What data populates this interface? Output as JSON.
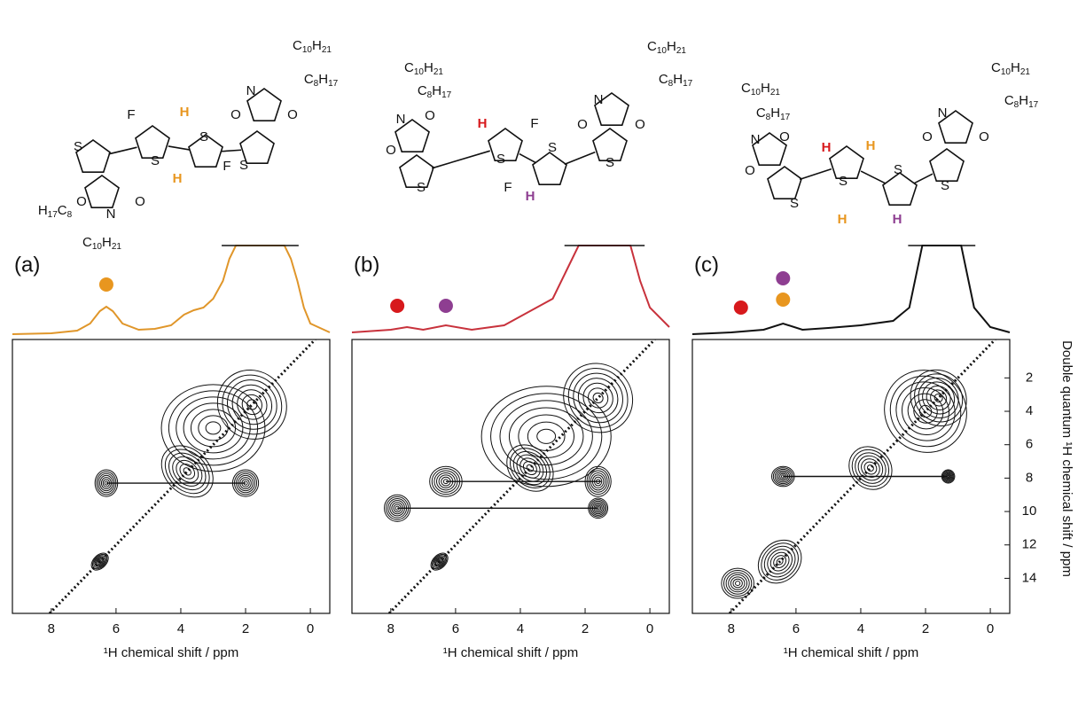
{
  "chart_data": [
    {
      "type": "contour",
      "label": "(a)",
      "color": "#e0962a",
      "diagonal": true,
      "xlim": [
        9.2,
        -0.6
      ],
      "ylim": [
        16.1,
        -0.3
      ],
      "xticks": [
        8,
        6,
        4,
        2,
        0
      ],
      "xlabel": "¹H chemical shift / ppm",
      "projection": {
        "x": [
          9.2,
          8,
          7.2,
          6.8,
          6.5,
          6.3,
          6.1,
          5.8,
          5.3,
          4.8,
          4.3,
          3.9,
          3.6,
          3.3,
          3.0,
          2.7,
          2.5,
          2.3,
          0.8,
          0.6,
          0.4,
          0.2,
          0,
          -0.6
        ],
        "values": [
          0,
          0.01,
          0.04,
          0.12,
          0.26,
          0.31,
          0.26,
          0.12,
          0.05,
          0.06,
          0.1,
          0.22,
          0.27,
          0.3,
          0.4,
          0.6,
          0.85,
          1,
          1,
          0.85,
          0.6,
          0.3,
          0.12,
          0.02
        ]
      },
      "markers": [
        {
          "x": 6.3,
          "color": "#e8961f"
        }
      ],
      "peaks": [
        {
          "x": 3.0,
          "y": 5.0,
          "rx": 1.6,
          "ry": 2.6
        },
        {
          "x": 1.8,
          "y": 3.6,
          "rx": 1.1,
          "ry": 2.0
        },
        {
          "x": 3.8,
          "y": 7.6,
          "rx": 0.9,
          "ry": 1.3
        },
        {
          "x": 6.3,
          "y": 8.3,
          "rx": 0.35,
          "ry": 0.8
        },
        {
          "x": 2.0,
          "y": 8.3,
          "rx": 0.4,
          "ry": 0.8
        },
        {
          "x": 6.5,
          "y": 13.0,
          "rx": 0.2,
          "ry": 0.6
        }
      ],
      "correlations": [
        {
          "x": [
            6.3,
            2.0
          ],
          "y": 8.3
        }
      ],
      "molecule": [
        {
          "text": "F",
          "color": "#111111"
        },
        {
          "text": "H",
          "color": "#e8961f"
        },
        {
          "text": "S",
          "color": "#111111"
        },
        {
          "text": "S",
          "color": "#111111"
        },
        {
          "text": "S",
          "color": "#111111"
        },
        {
          "text": "S",
          "color": "#111111"
        },
        {
          "text": "H",
          "color": "#e8961f"
        },
        {
          "text": "F",
          "color": "#111111"
        },
        {
          "text": "O",
          "color": "#111111"
        },
        {
          "text": "N",
          "color": "#111111"
        },
        {
          "text": "O",
          "color": "#111111"
        },
        {
          "text": "O",
          "color": "#111111"
        },
        {
          "text": "N",
          "color": "#111111"
        },
        {
          "text": "O",
          "color": "#111111"
        },
        {
          "text": "C10H21",
          "color": "#111111"
        },
        {
          "text": "C8H17",
          "color": "#111111"
        },
        {
          "text": "H17C8",
          "color": "#111111"
        },
        {
          "text": "C10H21",
          "color": "#111111"
        }
      ]
    },
    {
      "type": "contour",
      "label": "(b)",
      "color": "#c8323c",
      "diagonal": true,
      "xlim": [
        9.2,
        -0.6
      ],
      "ylim": [
        16.1,
        -0.3
      ],
      "xticks": [
        8,
        6,
        4,
        2,
        0
      ],
      "xlabel": "¹H chemical shift / ppm",
      "projection": {
        "x": [
          9.2,
          8,
          7.5,
          7,
          6.3,
          5.5,
          4.5,
          4,
          3.5,
          3,
          2.6,
          2.2,
          0.6,
          0.3,
          0,
          -0.6
        ],
        "values": [
          0.02,
          0.05,
          0.08,
          0.05,
          0.1,
          0.05,
          0.1,
          0.2,
          0.3,
          0.4,
          0.7,
          1,
          1,
          0.6,
          0.3,
          0.08
        ]
      },
      "markers": [
        {
          "x": 7.8,
          "color": "#d7191c"
        },
        {
          "x": 6.3,
          "color": "#8e3e91"
        }
      ],
      "peaks": [
        {
          "x": 3.2,
          "y": 5.5,
          "rx": 2.0,
          "ry": 3.0
        },
        {
          "x": 1.6,
          "y": 3.2,
          "rx": 1.1,
          "ry": 2.0
        },
        {
          "x": 3.7,
          "y": 7.4,
          "rx": 0.8,
          "ry": 1.2
        },
        {
          "x": 6.3,
          "y": 8.2,
          "rx": 0.5,
          "ry": 0.9
        },
        {
          "x": 1.6,
          "y": 8.2,
          "rx": 0.4,
          "ry": 0.9
        },
        {
          "x": 7.8,
          "y": 9.8,
          "rx": 0.4,
          "ry": 0.8
        },
        {
          "x": 1.6,
          "y": 9.8,
          "rx": 0.3,
          "ry": 0.6
        },
        {
          "x": 6.5,
          "y": 13.0,
          "rx": 0.2,
          "ry": 0.6
        }
      ],
      "correlations": [
        {
          "x": [
            6.3,
            1.5
          ],
          "y": 8.2
        },
        {
          "x": [
            7.8,
            1.6
          ],
          "y": 9.8
        }
      ],
      "molecule": [
        {
          "text": "C10H21",
          "color": "#111111"
        },
        {
          "text": "C8H17",
          "color": "#111111"
        },
        {
          "text": "N",
          "color": "#111111"
        },
        {
          "text": "O",
          "color": "#111111"
        },
        {
          "text": "O",
          "color": "#111111"
        },
        {
          "text": "S",
          "color": "#111111"
        },
        {
          "text": "H",
          "color": "#d7191c"
        },
        {
          "text": "F",
          "color": "#111111"
        },
        {
          "text": "S",
          "color": "#111111"
        },
        {
          "text": "S",
          "color": "#111111"
        },
        {
          "text": "F",
          "color": "#111111"
        },
        {
          "text": "H",
          "color": "#8e3e91"
        },
        {
          "text": "S",
          "color": "#111111"
        },
        {
          "text": "O",
          "color": "#111111"
        },
        {
          "text": "N",
          "color": "#111111"
        },
        {
          "text": "O",
          "color": "#111111"
        },
        {
          "text": "C10H21",
          "color": "#111111"
        },
        {
          "text": "C8H17",
          "color": "#111111"
        }
      ]
    },
    {
      "type": "contour",
      "label": "(c)",
      "color": "#111111",
      "diagonal": true,
      "xlim": [
        9.2,
        -0.6
      ],
      "ylim": [
        16.1,
        -0.3
      ],
      "xticks": [
        8,
        6,
        4,
        2,
        0
      ],
      "yticks": [
        2,
        4,
        6,
        8,
        10,
        12,
        14
      ],
      "xlabel": "¹H chemical shift / ppm",
      "ylabel": "Double quantum ¹H chemical shift  / ppm",
      "projection": {
        "x": [
          9.2,
          8,
          7,
          6.4,
          5.8,
          5,
          4,
          3,
          2.5,
          2.1,
          0.9,
          0.5,
          0,
          -0.6
        ],
        "values": [
          0,
          0.02,
          0.05,
          0.12,
          0.05,
          0.07,
          0.1,
          0.15,
          0.3,
          1,
          1,
          0.3,
          0.08,
          0.02
        ]
      },
      "markers": [
        {
          "x": 7.7,
          "color": "#d7191c"
        },
        {
          "x": 6.4,
          "color": "#e8961f"
        },
        {
          "x": 6.4,
          "color": "#8e3e91"
        }
      ],
      "peaks": [
        {
          "x": 2.0,
          "y": 4.0,
          "rx": 1.3,
          "ry": 2.4
        },
        {
          "x": 1.6,
          "y": 3.2,
          "rx": 0.9,
          "ry": 1.6
        },
        {
          "x": 3.7,
          "y": 7.4,
          "rx": 0.7,
          "ry": 1.2
        },
        {
          "x": 6.4,
          "y": 7.9,
          "rx": 0.35,
          "ry": 0.6
        },
        {
          "x": 1.3,
          "y": 7.9,
          "rx": 0.2,
          "ry": 0.4
        },
        {
          "x": 6.5,
          "y": 13.0,
          "rx": 0.6,
          "ry": 1.4
        },
        {
          "x": 7.8,
          "y": 14.3,
          "rx": 0.5,
          "ry": 0.9
        }
      ],
      "correlations": [
        {
          "x": [
            6.4,
            1.3
          ],
          "y": 7.9
        }
      ],
      "molecule": [
        {
          "text": "C10H21",
          "color": "#111111"
        },
        {
          "text": "C8H17",
          "color": "#111111"
        },
        {
          "text": "N",
          "color": "#111111"
        },
        {
          "text": "O",
          "color": "#111111"
        },
        {
          "text": "O",
          "color": "#111111"
        },
        {
          "text": "S",
          "color": "#111111"
        },
        {
          "text": "H",
          "color": "#d7191c"
        },
        {
          "text": "H",
          "color": "#e8961f"
        },
        {
          "text": "S",
          "color": "#111111"
        },
        {
          "text": "S",
          "color": "#111111"
        },
        {
          "text": "H",
          "color": "#e8961f"
        },
        {
          "text": "H",
          "color": "#8e3e91"
        },
        {
          "text": "S",
          "color": "#111111"
        },
        {
          "text": "O",
          "color": "#111111"
        },
        {
          "text": "N",
          "color": "#111111"
        },
        {
          "text": "O",
          "color": "#111111"
        },
        {
          "text": "C10H21",
          "color": "#111111"
        },
        {
          "text": "C8H17",
          "color": "#111111"
        }
      ]
    }
  ]
}
